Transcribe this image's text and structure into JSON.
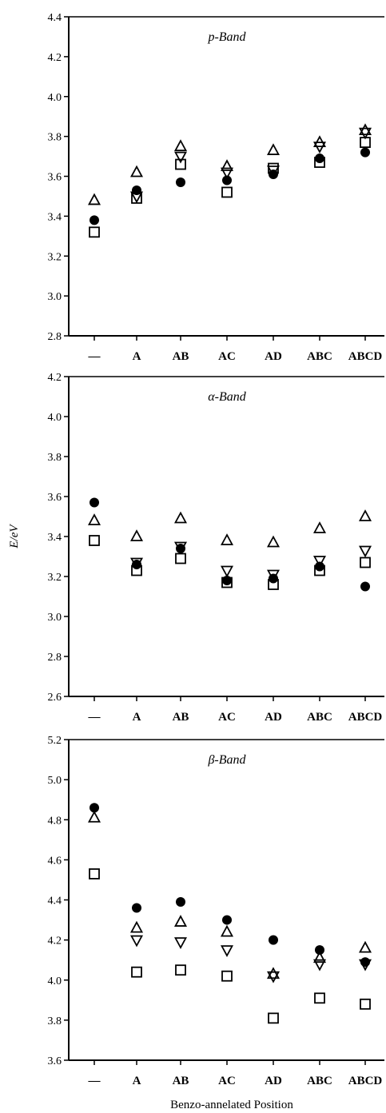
{
  "chart_data": [
    {
      "type": "scatter",
      "title": "p-Band",
      "categories": [
        "—",
        "A",
        "AB",
        "AC",
        "AD",
        "ABC",
        "ABCD"
      ],
      "ylim": [
        2.8,
        4.4
      ],
      "yticks": [
        2.8,
        3.0,
        3.2,
        3.4,
        3.6,
        3.8,
        4.0,
        4.2,
        4.4
      ],
      "series": [
        {
          "marker": "filled-circle",
          "values": [
            3.38,
            3.53,
            3.57,
            3.58,
            3.61,
            3.69,
            3.72
          ]
        },
        {
          "marker": "open-triangle-up",
          "values": [
            3.48,
            3.62,
            3.75,
            3.65,
            3.73,
            3.77,
            3.83
          ]
        },
        {
          "marker": "open-triangle-down",
          "values": [
            null,
            3.5,
            3.7,
            3.62,
            3.63,
            3.75,
            3.82
          ]
        },
        {
          "marker": "open-square",
          "values": [
            3.32,
            3.49,
            3.66,
            3.52,
            3.64,
            3.67,
            3.77
          ]
        }
      ]
    },
    {
      "type": "scatter",
      "title": "α-Band",
      "categories": [
        "—",
        "A",
        "AB",
        "AC",
        "AD",
        "ABC",
        "ABCD"
      ],
      "ylabel": "E/eV",
      "ylim": [
        2.6,
        4.2
      ],
      "yticks": [
        2.6,
        2.8,
        3.0,
        3.2,
        3.4,
        3.6,
        3.8,
        4.0,
        4.2
      ],
      "series": [
        {
          "marker": "filled-circle",
          "values": [
            3.57,
            3.26,
            3.34,
            3.18,
            3.19,
            3.25,
            3.15
          ]
        },
        {
          "marker": "open-triangle-up",
          "values": [
            3.48,
            3.4,
            3.49,
            3.38,
            3.37,
            3.44,
            3.5
          ]
        },
        {
          "marker": "open-triangle-down",
          "values": [
            null,
            3.27,
            3.35,
            3.23,
            3.21,
            3.28,
            3.33
          ]
        },
        {
          "marker": "open-square",
          "values": [
            3.38,
            3.23,
            3.29,
            3.17,
            3.16,
            3.23,
            3.27
          ]
        }
      ]
    },
    {
      "type": "scatter",
      "title": "β-Band",
      "categories": [
        "—",
        "A",
        "AB",
        "AC",
        "AD",
        "ABC",
        "ABCD"
      ],
      "xlabel": "Benzo-annelated Position",
      "ylim": [
        3.6,
        5.2
      ],
      "yticks": [
        3.6,
        3.8,
        4.0,
        4.2,
        4.4,
        4.6,
        4.8,
        5.0,
        5.2
      ],
      "series": [
        {
          "marker": "filled-circle",
          "values": [
            4.86,
            4.36,
            4.39,
            4.3,
            4.2,
            4.15,
            4.09
          ]
        },
        {
          "marker": "open-triangle-up",
          "values": [
            4.81,
            4.26,
            4.29,
            4.24,
            4.03,
            4.11,
            4.16
          ]
        },
        {
          "marker": "open-triangle-down",
          "values": [
            null,
            4.2,
            4.19,
            4.15,
            4.02,
            4.08,
            4.08
          ]
        },
        {
          "marker": "open-square",
          "values": [
            4.53,
            4.04,
            4.05,
            4.02,
            3.81,
            3.91,
            3.88
          ]
        }
      ]
    }
  ]
}
